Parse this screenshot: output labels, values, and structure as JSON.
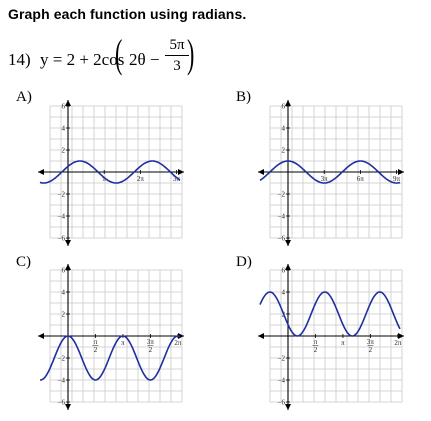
{
  "instruction": "Graph each function using radians.",
  "problem": {
    "number": "14)",
    "lhs": "y = 2 + 2cos",
    "inner_left": "2θ −",
    "frac_num": "5π",
    "frac_den": "3"
  },
  "options": [
    {
      "label": "A)",
      "y_ticks": [
        "6",
        "4",
        "2",
        "−2",
        "−4",
        "−6"
      ],
      "x_ticks": [
        "π",
        "2π",
        "3π"
      ],
      "curve": {
        "kind": "cos",
        "offset": 0,
        "amplitude": 1,
        "period_pi": 2,
        "phase_pi": 0.33
      }
    },
    {
      "label": "B)",
      "y_ticks": [
        "6",
        "4",
        "2",
        "−2",
        "−4",
        "−6"
      ],
      "x_ticks": [
        "3π",
        "6π",
        "9π"
      ],
      "curve": {
        "kind": "cos",
        "offset": 0,
        "amplitude": 1,
        "period_pi": 6,
        "phase_pi": 0
      }
    },
    {
      "label": "C)",
      "y_ticks": [
        "6",
        "4",
        "2",
        "−2",
        "−4",
        "−6"
      ],
      "x_ticks": [
        "π/2",
        "π",
        "3π/2",
        "2π"
      ],
      "curve": {
        "kind": "cos",
        "offset": -2,
        "amplitude": 2,
        "period_pi": 1,
        "phase_pi": 0
      }
    },
    {
      "label": "D)",
      "y_ticks": [
        "6",
        "4",
        "2",
        "−2",
        "−4",
        "−6"
      ],
      "x_ticks": [
        "π/2",
        "π",
        "3π/2",
        "2π"
      ],
      "curve": {
        "kind": "cos",
        "offset": 2,
        "amplitude": 2,
        "period_pi": 1,
        "phase_pi": 0.67
      }
    }
  ],
  "colors": {
    "curve": "#1f2f9e",
    "grid": "#c8c8c8",
    "axis": "#000000"
  }
}
